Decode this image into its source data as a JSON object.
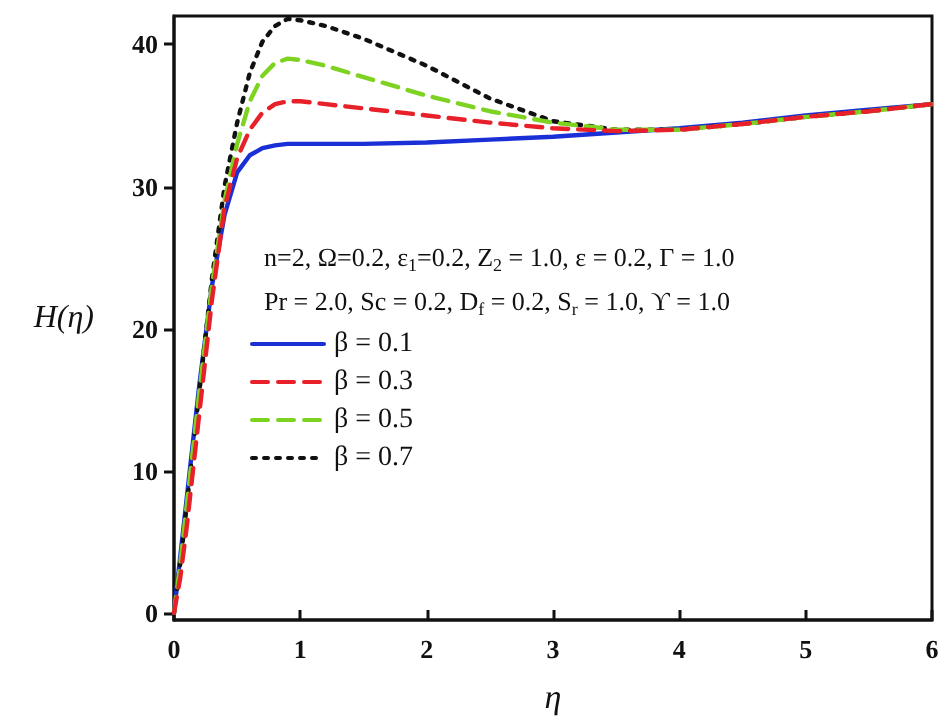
{
  "chart_data": {
    "type": "line",
    "xlabel": "η",
    "ylabel": "H(η)",
    "x": [
      0,
      0.05,
      0.1,
      0.15,
      0.2,
      0.3,
      0.4,
      0.5,
      0.6,
      0.7,
      0.8,
      0.9,
      1.0,
      1.2,
      1.5,
      2.0,
      2.5,
      3.0,
      3.5,
      4.0,
      4.5,
      5.0,
      5.5,
      6.0
    ],
    "series": [
      {
        "name": "β = 0.1",
        "color": "#1a2fd6",
        "line_style": "solid",
        "values": [
          0,
          4,
          8,
          12,
          16,
          23,
          28,
          31,
          32.2,
          32.7,
          32.9,
          33,
          33,
          33,
          33,
          33.1,
          33.3,
          33.5,
          33.8,
          34.1,
          34.5,
          35,
          35.4,
          35.8
        ]
      },
      {
        "name": "β = 0.3",
        "color": "#e8202a",
        "line_style": "dashed",
        "values": [
          0,
          2.5,
          6,
          10,
          14,
          22,
          28.5,
          32,
          34,
          35.2,
          35.8,
          36,
          36,
          35.8,
          35.5,
          35,
          34.5,
          34.1,
          33.9,
          34,
          34.4,
          34.9,
          35.3,
          35.8
        ]
      },
      {
        "name": "β = 0.5",
        "color": "#7ed321",
        "line_style": "dashed",
        "values": [
          0,
          3.5,
          7.5,
          11.5,
          15.5,
          23,
          29,
          33,
          36,
          37.8,
          38.7,
          39,
          38.9,
          38.5,
          37.7,
          36.4,
          35.3,
          34.5,
          34,
          34,
          34.4,
          34.9,
          35.3,
          35.8
        ]
      },
      {
        "name": "β = 0.7",
        "color": "#111111",
        "line_style": "dotted",
        "values": [
          0,
          3.5,
          7.5,
          11.5,
          15.5,
          23.5,
          30,
          34.5,
          38,
          40.2,
          41.3,
          41.8,
          41.7,
          41.3,
          40.4,
          38.5,
          36.2,
          34.6,
          34,
          34,
          34.4,
          34.9,
          35.3,
          35.8
        ]
      }
    ],
    "xlim": [
      0,
      6
    ],
    "xticks": [
      0,
      1,
      2,
      3,
      4,
      5,
      6
    ],
    "ylim": [
      -0.5,
      42
    ],
    "yticks": [
      0,
      10,
      20,
      30,
      40
    ],
    "grid": false,
    "legend": "left",
    "marker": "none",
    "annotations": [
      "n=2, Ω=0.2, ε$_{1}$=0.2, Z$_{2}$ = 1.0, ε = 0.2, Γ = 1.0",
      "Pr = 2.0, Sc = 0.2, D$_{f}$ = 0.2, S$_{r}$ = 1.0, ϒ = 1.0"
    ]
  }
}
